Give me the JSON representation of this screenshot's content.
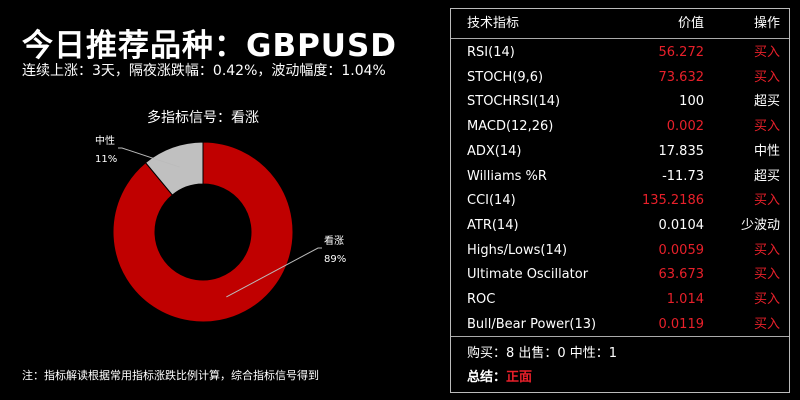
{
  "header": {
    "title": "今日推荐品种：GBPUSD",
    "subtitle": "连续上涨：3天，隔夜涨跌幅：0.42%，波动幅度：1.04%"
  },
  "chart_data": {
    "type": "pie",
    "title": "多指标信号：看涨",
    "donut": true,
    "slices": [
      {
        "label": "看涨",
        "value": 89,
        "pct_label": "89%",
        "color": "#c00000"
      },
      {
        "label": "中性",
        "value": 11,
        "pct_label": "11%",
        "color": "#c0c0c0"
      }
    ]
  },
  "footnote": "注：指标解读根据常用指标涨跌比例计算，综合指标信号得到",
  "table": {
    "headers": {
      "name": "技术指标",
      "value": "价值",
      "action": "操作"
    },
    "rows": [
      {
        "name": "RSI(14)",
        "value": "56.272",
        "action": "买入",
        "highlight": true
      },
      {
        "name": "STOCH(9,6)",
        "value": "73.632",
        "action": "买入",
        "highlight": true
      },
      {
        "name": "STOCHRSI(14)",
        "value": "100",
        "action": "超买",
        "highlight": false
      },
      {
        "name": "MACD(12,26)",
        "value": "0.002",
        "action": "买入",
        "highlight": true
      },
      {
        "name": "ADX(14)",
        "value": "17.835",
        "action": "中性",
        "highlight": false
      },
      {
        "name": "Williams %R",
        "value": "-11.73",
        "action": "超买",
        "highlight": false
      },
      {
        "name": "CCI(14)",
        "value": "135.2186",
        "action": "买入",
        "highlight": true
      },
      {
        "name": "ATR(14)",
        "value": "0.0104",
        "action": "少波动",
        "highlight": false
      },
      {
        "name": "Highs/Lows(14)",
        "value": "0.0059",
        "action": "买入",
        "highlight": true
      },
      {
        "name": "Ultimate Oscillator",
        "value": "63.673",
        "action": "买入",
        "highlight": true
      },
      {
        "name": "ROC",
        "value": "1.014",
        "action": "买入",
        "highlight": true
      },
      {
        "name": "Bull/Bear Power(13)",
        "value": "0.0119",
        "action": "买入",
        "highlight": true
      }
    ]
  },
  "summary": {
    "counts": "购买：8 出售：0 中性：1",
    "conclusion_label": "总结：",
    "conclusion_value": "正面"
  }
}
